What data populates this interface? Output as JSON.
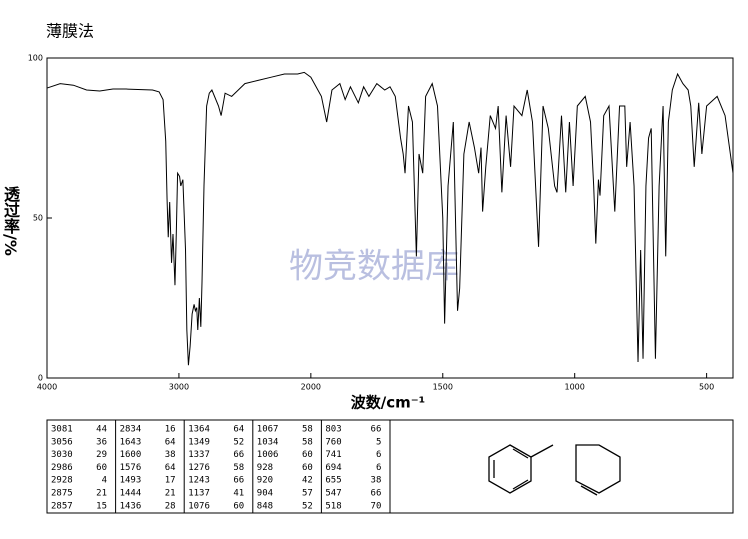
{
  "chart_data": {
    "type": "line",
    "title": "薄膜法",
    "watermark": "物竞数据库",
    "xlabel": "波数/cm⁻¹",
    "ylabel": "透过率/%",
    "xlim": [
      4000,
      400
    ],
    "xbreak": 2000,
    "xticks": [
      4000,
      3000,
      2000,
      1500,
      1000,
      500
    ],
    "ylim": [
      0,
      100
    ],
    "yticks": [
      0,
      50,
      100
    ],
    "color": "#000000",
    "x": [
      4000,
      3900,
      3800,
      3700,
      3600,
      3500,
      3400,
      3200,
      3150,
      3120,
      3100,
      3090,
      3081,
      3070,
      3056,
      3045,
      3030,
      3020,
      3010,
      2995,
      2986,
      2970,
      2950,
      2940,
      2928,
      2915,
      2900,
      2885,
      2875,
      2865,
      2857,
      2845,
      2834,
      2825,
      2810,
      2790,
      2770,
      2750,
      2700,
      2680,
      2650,
      2600,
      2550,
      2500,
      2400,
      2300,
      2200,
      2100,
      2050,
      2000,
      1960,
      1940,
      1920,
      1890,
      1870,
      1850,
      1820,
      1800,
      1780,
      1750,
      1720,
      1700,
      1680,
      1660,
      1650,
      1643,
      1630,
      1615,
      1600,
      1590,
      1576,
      1565,
      1540,
      1520,
      1500,
      1493,
      1480,
      1460,
      1444,
      1436,
      1420,
      1400,
      1380,
      1364,
      1355,
      1349,
      1337,
      1320,
      1300,
      1290,
      1276,
      1260,
      1243,
      1230,
      1200,
      1180,
      1160,
      1137,
      1120,
      1100,
      1076,
      1067,
      1050,
      1034,
      1020,
      1006,
      990,
      960,
      940,
      928,
      920,
      910,
      904,
      890,
      870,
      848,
      830,
      810,
      803,
      790,
      775,
      760,
      750,
      741,
      730,
      720,
      710,
      694,
      680,
      665,
      655,
      645,
      630,
      610,
      590,
      570,
      560,
      547,
      530,
      518,
      500,
      460,
      430,
      400
    ],
    "values": [
      90.6,
      92,
      91.5,
      90,
      89.7,
      90.3,
      90.3,
      90,
      89.4,
      87,
      74,
      56,
      44,
      55,
      36,
      45,
      29,
      45,
      64,
      63,
      60,
      62,
      40,
      15,
      4,
      10,
      20,
      23,
      21,
      22,
      15,
      25,
      16,
      30,
      60,
      85,
      89,
      90,
      85,
      82,
      89,
      88,
      90,
      92,
      93,
      94,
      95,
      95,
      95.5,
      94,
      88,
      80,
      90,
      92,
      87,
      91,
      86,
      91,
      88,
      92,
      90,
      91,
      88,
      75,
      70,
      64,
      85,
      80,
      38,
      70,
      64,
      88,
      92,
      85,
      50,
      17,
      60,
      80,
      21,
      28,
      70,
      80,
      72,
      64,
      72,
      52,
      66,
      82,
      78,
      85,
      58,
      82,
      66,
      85,
      82,
      90,
      80,
      41,
      85,
      78,
      60,
      58,
      82,
      58,
      80,
      60,
      85,
      88,
      80,
      60,
      42,
      62,
      57,
      82,
      85,
      52,
      85,
      85,
      66,
      80,
      60,
      5,
      40,
      6,
      60,
      75,
      78,
      6,
      60,
      85,
      38,
      80,
      90,
      95,
      92,
      90,
      85,
      66,
      86,
      70,
      85,
      88,
      82,
      64
    ],
    "peak_table": [
      [
        [
          "3081",
          "44"
        ],
        [
          "3056",
          "36"
        ],
        [
          "3030",
          "29"
        ],
        [
          "2986",
          "60"
        ],
        [
          "2928",
          "4"
        ],
        [
          "2875",
          "21"
        ],
        [
          "2857",
          "15"
        ]
      ],
      [
        [
          "2834",
          "16"
        ],
        [
          "1643",
          "64"
        ],
        [
          "1600",
          "38"
        ],
        [
          "1576",
          "64"
        ],
        [
          "1493",
          "17"
        ],
        [
          "1444",
          "21"
        ],
        [
          "1436",
          "28"
        ]
      ],
      [
        [
          "1364",
          "64"
        ],
        [
          "1349",
          "52"
        ],
        [
          "1337",
          "66"
        ],
        [
          "1276",
          "58"
        ],
        [
          "1243",
          "66"
        ],
        [
          "1137",
          "41"
        ],
        [
          "1076",
          "60"
        ]
      ],
      [
        [
          "1067",
          "58"
        ],
        [
          "1034",
          "58"
        ],
        [
          "1006",
          "60"
        ],
        [
          "928",
          "60"
        ],
        [
          "920",
          "42"
        ],
        [
          "904",
          "57"
        ],
        [
          "848",
          "52"
        ]
      ],
      [
        [
          "803",
          "66"
        ],
        [
          "760",
          "5"
        ],
        [
          "741",
          "6"
        ],
        [
          "694",
          "6"
        ],
        [
          "655",
          "38"
        ],
        [
          "547",
          "66"
        ],
        [
          "518",
          "70"
        ]
      ]
    ]
  }
}
